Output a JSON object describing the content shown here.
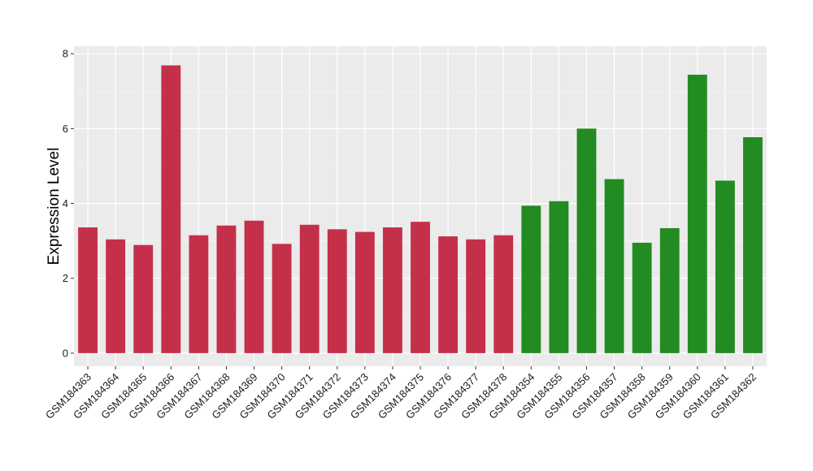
{
  "chart_data": {
    "type": "bar",
    "title": "",
    "xlabel": "",
    "ylabel": "Expression Level",
    "ylim": [
      0,
      8
    ],
    "yticks": [
      0,
      2,
      4,
      6,
      8
    ],
    "grid": true,
    "legend": "none",
    "colors": {
      "red": "#c4304a",
      "green": "#228b22",
      "panel": "#ebebeb",
      "grid_major": "#ffffff",
      "grid_minor": "#f5f5f5"
    },
    "categories": [
      "GSM184363",
      "GSM184364",
      "GSM184365",
      "GSM184366",
      "GSM184367",
      "GSM184368",
      "GSM184369",
      "GSM184370",
      "GSM184371",
      "GSM184372",
      "GSM184373",
      "GSM184374",
      "GSM184375",
      "GSM184376",
      "GSM184377",
      "GSM184378",
      "GSM184354",
      "GSM184355",
      "GSM184356",
      "GSM184357",
      "GSM184358",
      "GSM184359",
      "GSM184360",
      "GSM184361",
      "GSM184362"
    ],
    "values": [
      3.36,
      3.04,
      2.89,
      7.69,
      3.15,
      3.41,
      3.54,
      2.92,
      3.43,
      3.31,
      3.24,
      3.36,
      3.51,
      3.12,
      3.04,
      3.15,
      3.94,
      4.06,
      6.0,
      4.65,
      2.95,
      3.34,
      7.44,
      4.61,
      5.77
    ],
    "bar_colors": [
      "red",
      "red",
      "red",
      "red",
      "red",
      "red",
      "red",
      "red",
      "red",
      "red",
      "red",
      "red",
      "red",
      "red",
      "red",
      "red",
      "green",
      "green",
      "green",
      "green",
      "green",
      "green",
      "green",
      "green",
      "green"
    ]
  }
}
